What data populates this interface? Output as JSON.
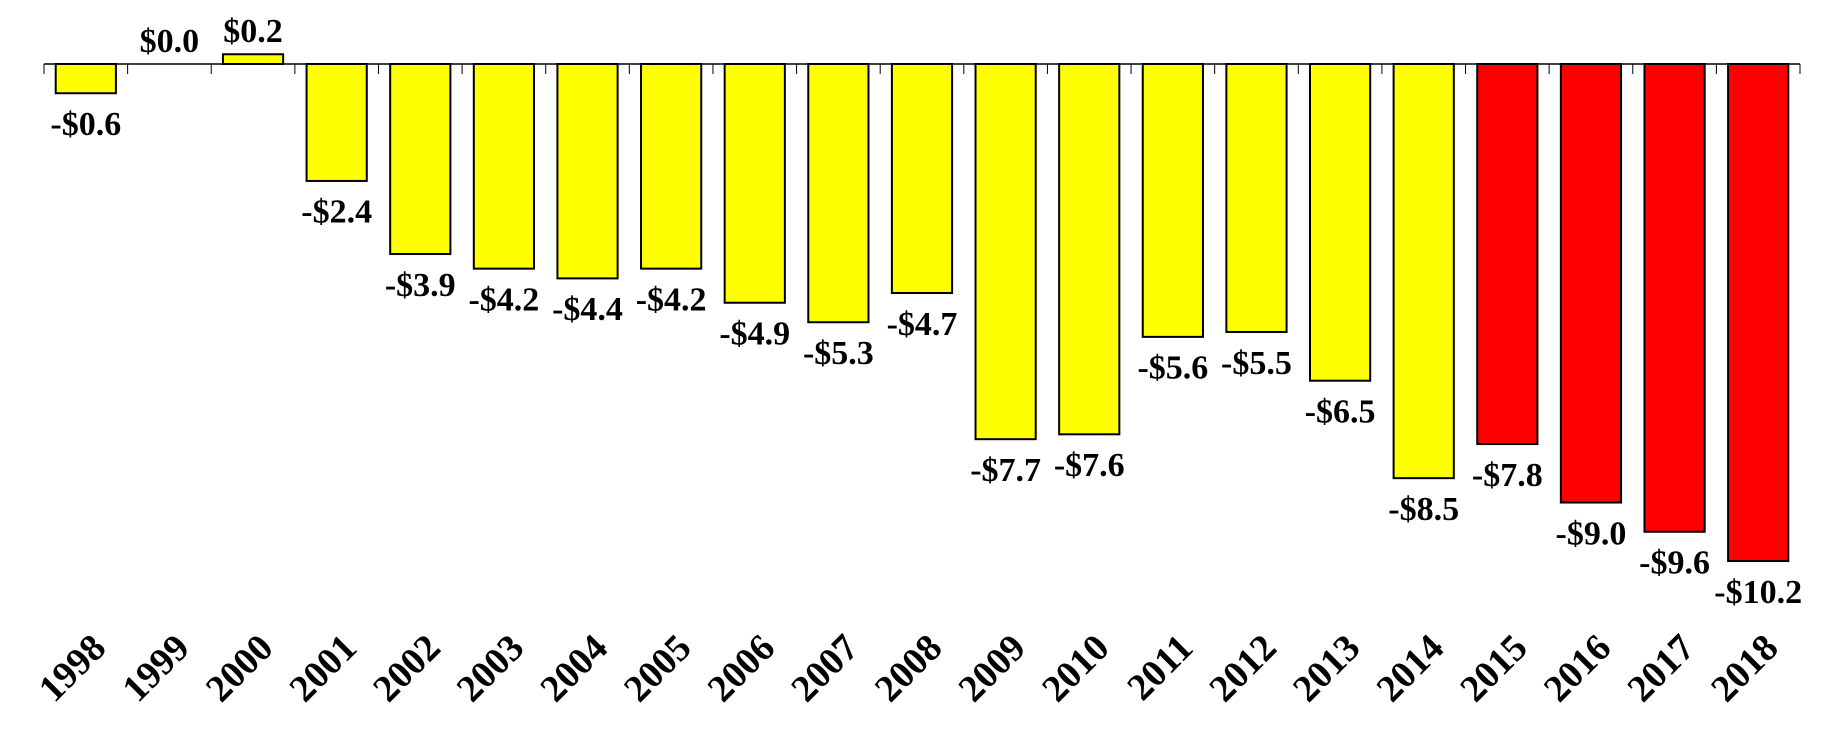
{
  "chart_data": {
    "type": "bar",
    "categories": [
      "1998",
      "1999",
      "2000",
      "2001",
      "2002",
      "2003",
      "2004",
      "2005",
      "2006",
      "2007",
      "2008",
      "2009",
      "2010",
      "2011",
      "2012",
      "2013",
      "2014",
      "2015",
      "2016",
      "2017",
      "2018"
    ],
    "values": [
      -0.6,
      0.0,
      0.2,
      -2.4,
      -3.9,
      -4.2,
      -4.4,
      -4.2,
      -4.9,
      -5.3,
      -4.7,
      -7.7,
      -7.6,
      -5.6,
      -5.5,
      -6.5,
      -8.5,
      -7.8,
      -9.0,
      -9.6,
      -10.2
    ],
    "value_labels": [
      "-$0.6",
      "$0.0",
      "$0.2",
      "-$2.4",
      "-$3.9",
      "-$4.2",
      "-$4.4",
      "-$4.2",
      "-$4.9",
      "-$5.3",
      "-$4.7",
      "-$7.7",
      "-$7.6",
      "-$5.6",
      "-$5.5",
      "-$6.5",
      "-$8.5",
      "-$7.8",
      "-$9.0",
      "-$9.6",
      "-$10.2"
    ],
    "colors": [
      "#ffff00",
      "#ffff00",
      "#ffff00",
      "#ffff00",
      "#ffff00",
      "#ffff00",
      "#ffff00",
      "#ffff00",
      "#ffff00",
      "#ffff00",
      "#ffff00",
      "#ffff00",
      "#ffff00",
      "#ffff00",
      "#ffff00",
      "#ffff00",
      "#ffff00",
      "#ff0000",
      "#ff0000",
      "#ff0000",
      "#ff0000"
    ]
  }
}
